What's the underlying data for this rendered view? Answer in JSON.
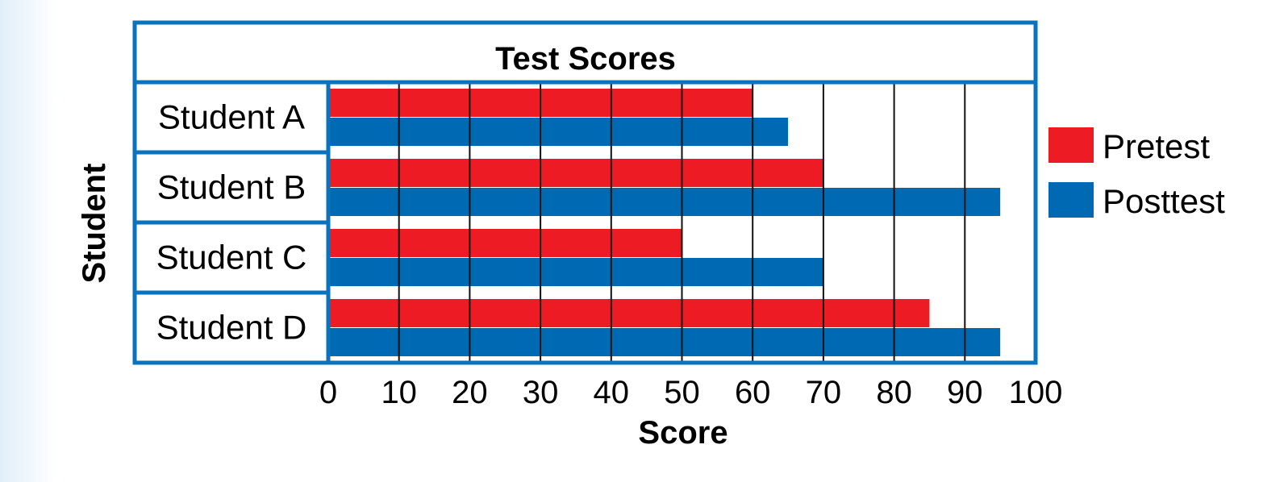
{
  "chart_data": {
    "type": "bar",
    "orientation": "horizontal",
    "title": "Test Scores",
    "xlabel": "Score",
    "ylabel": "Student",
    "categories": [
      "Student A",
      "Student B",
      "Student C",
      "Student D"
    ],
    "series": [
      {
        "name": "Pretest",
        "color": "#ed1c24",
        "values": [
          60,
          70,
          50,
          85
        ]
      },
      {
        "name": "Posttest",
        "color": "#0069b4",
        "values": [
          65,
          95,
          70,
          95
        ]
      }
    ],
    "xlim": [
      0,
      100
    ],
    "xticks": [
      "0",
      "10",
      "20",
      "30",
      "40",
      "50",
      "60",
      "70",
      "80",
      "90",
      "100"
    ],
    "grid": true,
    "legend": "right",
    "frame_color": "#0b72bd"
  }
}
